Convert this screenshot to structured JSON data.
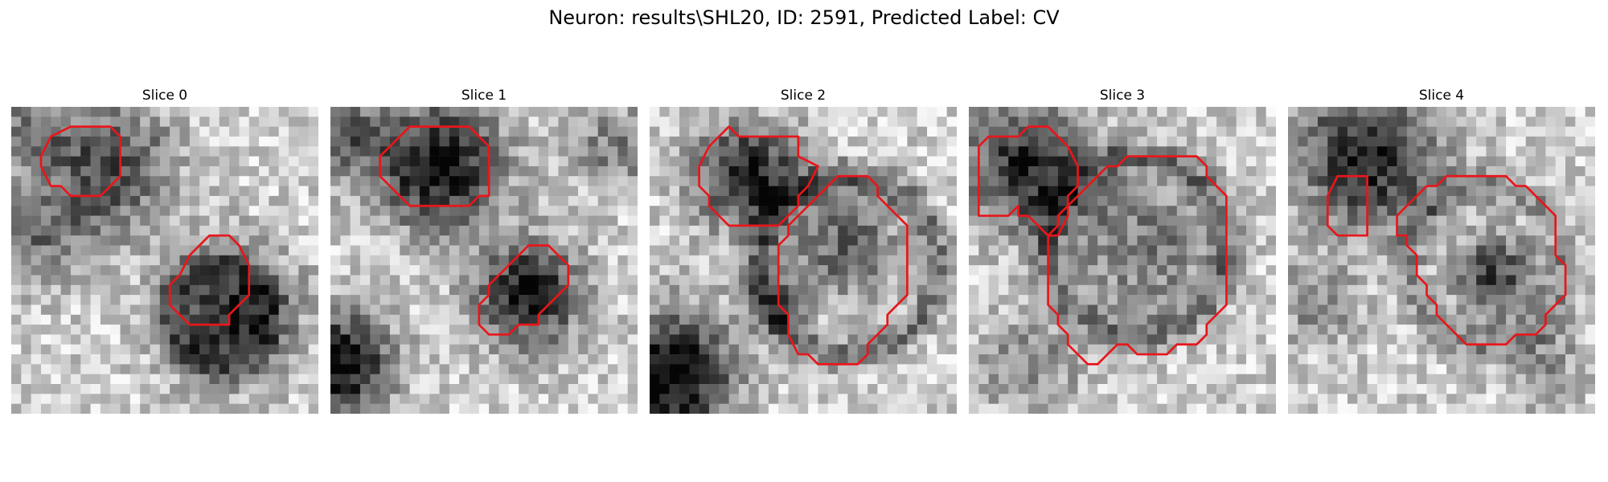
{
  "figure": {
    "title": "Neuron: results\\SHL20, ID: 2591, Predicted Label: CV",
    "contour_color": "#e8161b"
  },
  "slices": [
    {
      "label": "Slice 0",
      "contours": [
        [
          [
            6,
            2
          ],
          [
            10,
            2
          ],
          [
            11,
            3
          ],
          [
            11,
            7
          ],
          [
            9,
            9
          ],
          [
            6,
            9
          ],
          [
            5,
            8
          ],
          [
            4,
            8
          ],
          [
            3,
            6
          ],
          [
            3,
            5
          ],
          [
            4,
            3
          ]
        ],
        [
          [
            20,
            13
          ],
          [
            22,
            13
          ],
          [
            23,
            14
          ],
          [
            24,
            16
          ],
          [
            24,
            19
          ],
          [
            23,
            20
          ],
          [
            22,
            21
          ],
          [
            22,
            22
          ],
          [
            18,
            22
          ],
          [
            17,
            21
          ],
          [
            16,
            20
          ],
          [
            16,
            18
          ],
          [
            17,
            17
          ],
          [
            18,
            15
          ],
          [
            19,
            14
          ]
        ]
      ]
    },
    {
      "label": "Slice 1",
      "contours": [
        [
          [
            8,
            2
          ],
          [
            14,
            2
          ],
          [
            15,
            3
          ],
          [
            16,
            4
          ],
          [
            16,
            9
          ],
          [
            15,
            9
          ],
          [
            14,
            10
          ],
          [
            10,
            10
          ],
          [
            9,
            10
          ],
          [
            8,
            10
          ],
          [
            7,
            9
          ],
          [
            6,
            8
          ],
          [
            5,
            7
          ],
          [
            5,
            5
          ],
          [
            6,
            4
          ]
        ],
        [
          [
            20,
            14
          ],
          [
            22,
            14
          ],
          [
            24,
            16
          ],
          [
            24,
            18
          ],
          [
            23,
            19
          ],
          [
            22,
            20
          ],
          [
            21,
            21
          ],
          [
            21,
            22
          ],
          [
            19,
            22
          ],
          [
            18,
            23
          ],
          [
            16,
            23
          ],
          [
            15,
            22
          ],
          [
            15,
            20
          ],
          [
            16,
            19
          ],
          [
            16,
            18
          ],
          [
            18,
            16
          ],
          [
            19,
            15
          ]
        ]
      ]
    },
    {
      "label": "Slice 2",
      "contours": [
        [
          [
            8,
            2
          ],
          [
            9,
            3
          ],
          [
            15,
            3
          ],
          [
            15,
            5
          ],
          [
            17,
            6
          ],
          [
            16,
            8
          ],
          [
            15,
            9
          ],
          [
            15,
            10
          ],
          [
            14,
            11
          ],
          [
            13,
            12
          ],
          [
            8,
            12
          ],
          [
            7,
            11
          ],
          [
            6,
            10
          ],
          [
            6,
            9
          ],
          [
            5,
            8
          ],
          [
            5,
            6
          ],
          [
            6,
            4
          ],
          [
            7,
            3
          ]
        ],
        [
          [
            19,
            7
          ],
          [
            22,
            7
          ],
          [
            23,
            8
          ],
          [
            23,
            9
          ],
          [
            25,
            11
          ],
          [
            26,
            12
          ],
          [
            26,
            19
          ],
          [
            25,
            20
          ],
          [
            24,
            21
          ],
          [
            24,
            22
          ],
          [
            23,
            23
          ],
          [
            22,
            24
          ],
          [
            22,
            25
          ],
          [
            21,
            26
          ],
          [
            17,
            26
          ],
          [
            16,
            25
          ],
          [
            15,
            25
          ],
          [
            14,
            23
          ],
          [
            14,
            21
          ],
          [
            13,
            20
          ],
          [
            13,
            14
          ],
          [
            14,
            13
          ],
          [
            14,
            12
          ],
          [
            15,
            11
          ],
          [
            16,
            10
          ],
          [
            17,
            9
          ],
          [
            18,
            8
          ]
        ]
      ]
    },
    {
      "label": "Slice 3",
      "contours": [
        [
          [
            5,
            3
          ],
          [
            6,
            2
          ],
          [
            8,
            2
          ],
          [
            9,
            3
          ],
          [
            10,
            4
          ],
          [
            11,
            6
          ],
          [
            11,
            8
          ],
          [
            10,
            9
          ],
          [
            10,
            11
          ],
          [
            9,
            13
          ],
          [
            8,
            13
          ],
          [
            7,
            12
          ],
          [
            6,
            11
          ],
          [
            5,
            11
          ],
          [
            5,
            10
          ],
          [
            4,
            11
          ],
          [
            1,
            11
          ],
          [
            1,
            4
          ],
          [
            2,
            3
          ]
        ],
        [
          [
            17,
            5
          ],
          [
            23,
            5
          ],
          [
            24,
            6
          ],
          [
            24,
            7
          ],
          [
            26,
            9
          ],
          [
            26,
            20
          ],
          [
            25,
            21
          ],
          [
            24,
            22
          ],
          [
            24,
            23
          ],
          [
            23,
            24
          ],
          [
            21,
            24
          ],
          [
            20,
            25
          ],
          [
            17,
            25
          ],
          [
            16,
            24
          ],
          [
            15,
            24
          ],
          [
            14,
            25
          ],
          [
            13,
            26
          ],
          [
            12,
            26
          ],
          [
            11,
            25
          ],
          [
            10,
            24
          ],
          [
            10,
            23
          ],
          [
            9,
            22
          ],
          [
            9,
            21
          ],
          [
            8,
            20
          ],
          [
            8,
            13
          ],
          [
            9,
            12
          ],
          [
            9,
            11
          ],
          [
            10,
            10
          ],
          [
            11,
            9
          ],
          [
            12,
            8
          ],
          [
            13,
            7
          ],
          [
            14,
            6
          ],
          [
            15,
            6
          ],
          [
            16,
            5
          ]
        ]
      ]
    },
    {
      "label": "Slice 4",
      "contours": [
        [
          [
            5,
            7
          ],
          [
            8,
            7
          ],
          [
            8,
            13
          ],
          [
            7,
            13
          ],
          [
            5,
            13
          ],
          [
            4,
            12
          ],
          [
            4,
            9
          ]
        ],
        [
          [
            16,
            7
          ],
          [
            22,
            7
          ],
          [
            23,
            8
          ],
          [
            24,
            8
          ],
          [
            25,
            9
          ],
          [
            26,
            10
          ],
          [
            27,
            11
          ],
          [
            27,
            15
          ],
          [
            28,
            16
          ],
          [
            28,
            19
          ],
          [
            27,
            20
          ],
          [
            26,
            21
          ],
          [
            26,
            22
          ],
          [
            25,
            23
          ],
          [
            23,
            23
          ],
          [
            22,
            24
          ],
          [
            18,
            24
          ],
          [
            17,
            23
          ],
          [
            16,
            22
          ],
          [
            15,
            21
          ],
          [
            15,
            20
          ],
          [
            14,
            19
          ],
          [
            14,
            18
          ],
          [
            13,
            17
          ],
          [
            13,
            15
          ],
          [
            12,
            14
          ],
          [
            12,
            13
          ],
          [
            11,
            13
          ],
          [
            11,
            11
          ],
          [
            12,
            10
          ],
          [
            13,
            9
          ],
          [
            14,
            8
          ],
          [
            15,
            8
          ]
        ]
      ]
    }
  ]
}
